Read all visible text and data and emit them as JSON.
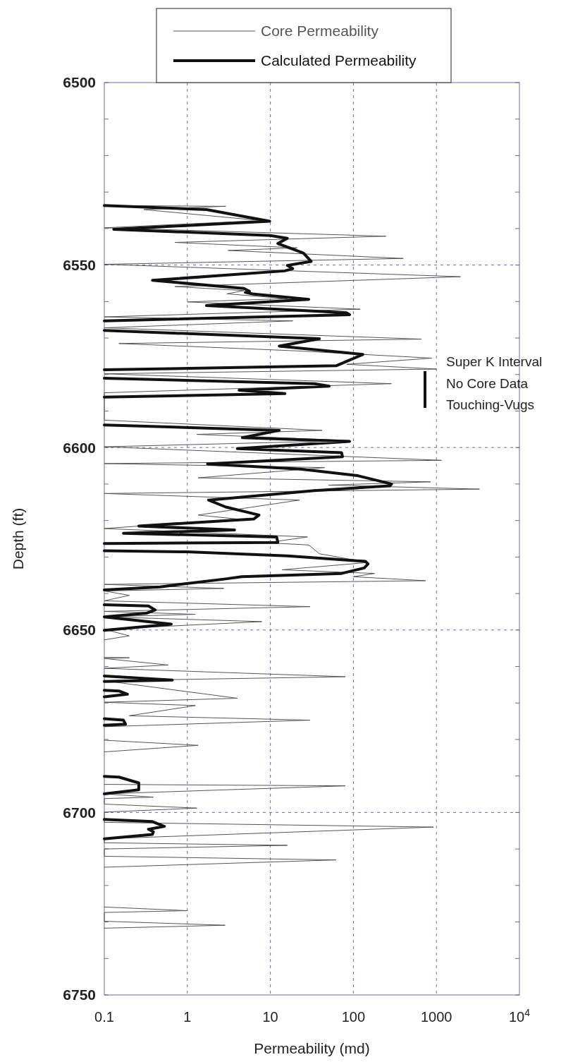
{
  "chart_data": {
    "type": "line",
    "xlabel": "Permeability (md)",
    "ylabel": "Depth (ft)",
    "log": "x",
    "grid": true,
    "legend": "top",
    "line_style": "solid",
    "xlim": [
      0.1,
      10000
    ],
    "xticks": [
      0.1,
      1,
      10,
      100,
      1000,
      {
        "value": 10000,
        "label": "10$^{4}$"
      }
    ],
    "ylim": [
      6750,
      6500
    ],
    "yticks": [
      6500,
      {
        "value": 6510,
        "label": null
      },
      {
        "value": 6520,
        "label": null
      },
      {
        "value": 6530,
        "label": null
      },
      {
        "value": 6540,
        "label": null
      },
      6550,
      {
        "value": 6560,
        "label": null
      },
      {
        "value": 6570,
        "label": null
      },
      {
        "value": 6580,
        "label": null
      },
      {
        "value": 6590,
        "label": null
      },
      6600,
      {
        "value": 6610,
        "label": null
      },
      {
        "value": 6620,
        "label": null
      },
      {
        "value": 6630,
        "label": null
      },
      {
        "value": 6640,
        "label": null
      },
      6650,
      {
        "value": 6660,
        "label": null
      },
      {
        "value": 6670,
        "label": null
      },
      {
        "value": 6680,
        "label": null
      },
      {
        "value": 6690,
        "label": null
      },
      6700,
      {
        "value": 6710,
        "label": null
      },
      {
        "value": 6720,
        "label": null
      },
      {
        "value": 6730,
        "label": null
      },
      {
        "value": 6740,
        "label": null
      },
      6750
    ],
    "annotations": [
      "Super K Interval\nNo Core Data\nTouching-Vugs"
    ],
    "series": [
      {
        "name": "Core Permeability",
        "color": "#555555",
        "x": [
          0.1,
          2.9,
          0.3,
          7.6,
          0.1,
          246,
          0.71,
          21,
          3.1,
          400,
          0.1,
          1950,
          0.71,
          4.8,
          3.0,
          16,
          1.0,
          121,
          0.1,
          18.6,
          0.1,
          660,
          0.15,
          20,
          880,
          83,
          1000,
          0.1,
          287,
          0.1,
          0.1,
          42,
          1.3,
          90,
          0.1,
          1150,
          0.1,
          45,
          1.35,
          850,
          50,
          3300,
          0.1,
          22.5,
          1.35,
          4.0,
          0.1,
          28,
          9.0,
          29,
          39,
          150,
          13.8,
          180,
          100,
          740,
          0.1,
          2.75,
          0.1,
          0.2,
          0.1,
          30,
          0.1,
          1.25,
          0.1,
          7.9,
          0.1,
          0.2,
          0.1,
          null,
          0.1,
          0.2,
          0.1,
          0.59,
          0.1,
          80,
          0.1,
          4.0,
          0.1,
          1.25,
          0.2,
          30,
          0.1,
          null,
          0.1,
          1.35,
          0.1,
          null,
          0.1,
          80,
          0.1,
          0.39,
          0.1,
          0.1,
          1.3,
          0.1,
          0.1,
          920,
          0.1,
          0.1,
          16,
          0.1,
          0.1,
          62,
          0.1,
          null,
          0.1,
          1.0,
          0.1,
          0.1,
          2.85,
          0.1
        ],
        "values": [
          6533.7,
          6533.9,
          6534.8,
          6537.8,
          6539.8,
          6542.1,
          6543.8,
          6545.3,
          6546.0,
          6548.2,
          6549.8,
          6553.2,
          6555.9,
          6557.0,
          6557.9,
          6559.2,
          6560.1,
          6562.1,
          6564.2,
          6565.3,
          6567.2,
          6570.3,
          6571.5,
          6573.5,
          6575.5,
          6577.2,
          6578.5,
          6579.8,
          6582.5,
          6585.0,
          6592.5,
          6595.3,
          6596.4,
          6598.1,
          6599.8,
          6603.5,
          6604.4,
          6605.5,
          6608.3,
          6609.4,
          6610.3,
          6611.4,
          6612.6,
          6614.4,
          6618.5,
          6619.6,
          6622.2,
          6624.5,
          6626.1,
          6626.7,
          6629.1,
          6631.5,
          6633.5,
          6634.5,
          6635.4,
          6636.5,
          6637.5,
          6638.6,
          6639.3,
          6640.5,
          6642.0,
          6643.6,
          6644.9,
          6645.7,
          6646.4,
          6647.7,
          6649.8,
          6651.6,
          6652.7,
          null,
          6657.5,
          6657.6,
          6657.8,
          6659.6,
          6660.5,
          6662.8,
          6663.9,
          6668.7,
          6669.8,
          6670.7,
          6673.5,
          6674.7,
          6676.5,
          null,
          6680.2,
          6681.6,
          6683.4,
          null,
          6692.3,
          6692.7,
          6694.9,
          6695.8,
          6696.2,
          6697.7,
          6698.8,
          6699.9,
          6702.7,
          6704.0,
          6707.2,
          6708.3,
          6709.0,
          6710.0,
          6712.0,
          6713.0,
          6715.0,
          null,
          6725.9,
          6726.9,
          6727.4,
          6729.8,
          6730.9,
          6731.7
        ]
      },
      {
        "name": "Calculated Permeability",
        "color": "#111111",
        "x": [
          0.1,
          1.7,
          9.8,
          0.13,
          10,
          16,
          12.3,
          25,
          31,
          16,
          18.6,
          14.9,
          0.38,
          4.8,
          5.6,
          5.0,
          6.1,
          29,
          1.7,
          83,
          90,
          0.1,
          null,
          0.1,
          39,
          12.8,
          130,
          62,
          0.1,
          null,
          0.1,
          34,
          51,
          4.2,
          15,
          0.1,
          null,
          0.1,
          12.8,
          4.6,
          90,
          4.0,
          72,
          74,
          1.75,
          23,
          112,
          288,
          276,
          34,
          1.8,
          2.9,
          7.3,
          6.3,
          0.26,
          3.7,
          0.17,
          11.9,
          12.3,
          0.1,
          null,
          0.1,
          1.0,
          16,
          140,
          150,
          135,
          72,
          4.5,
          2.9,
          0.8,
          0.47,
          0.1,
          null,
          0.1,
          0.34,
          0.41,
          0.32,
          0.1,
          0.64,
          0.1,
          null,
          0.1,
          0.66,
          0.1,
          null,
          0.1,
          0.15,
          0.19,
          0.1,
          null,
          0.1,
          0.17,
          0.18,
          0.1,
          null,
          0.1,
          0.15,
          0.26,
          0.26,
          0.1,
          null,
          0.1,
          0.38,
          0.53,
          0.34,
          0.39,
          0.38,
          0.1
        ],
        "values": [
          6533.7,
          6534.8,
          6538.0,
          6540.2,
          6541.9,
          6542.7,
          6544.1,
          6546.7,
          6549.0,
          6550.1,
          6551.0,
          6551.6,
          6554.2,
          6556.4,
          6557.2,
          6557.5,
          6557.9,
          6559.4,
          6561.1,
          6563.1,
          6563.6,
          6565.3,
          null,
          6567.9,
          6570.2,
          6572.2,
          6574.5,
          6577.6,
          6578.7,
          null,
          6581.0,
          6582.5,
          6583.2,
          6584.3,
          6585.2,
          6586.2,
          null,
          6593.8,
          6595.3,
          6597.3,
          6598.3,
          6600.3,
          6601.4,
          6602.5,
          6604.5,
          6605.9,
          6607.7,
          6610.0,
          6610.5,
          6611.8,
          6614.4,
          6616.3,
          6618.5,
          6619.6,
          6621.5,
          6622.6,
          6623.5,
          6624.5,
          6626.0,
          6626.3,
          null,
          6628.3,
          6628.6,
          6629.7,
          6631.2,
          6631.9,
          6633.0,
          6634.5,
          6635.4,
          6636.0,
          6637.5,
          6638.2,
          6639.0,
          null,
          6643.1,
          6643.4,
          6644.5,
          6645.4,
          6646.4,
          6648.4,
          6650.1,
          null,
          6662.6,
          6663.7,
          6664.1,
          null,
          6666.5,
          6666.7,
          6667.6,
          6668.3,
          null,
          6674.3,
          6674.7,
          6675.8,
          6676.1,
          null,
          6690.1,
          6690.3,
          6691.9,
          6693.8,
          6694.9,
          null,
          6701.9,
          6702.5,
          6703.8,
          6704.6,
          6705.3,
          6706.0,
          6707.2
        ]
      }
    ]
  }
}
